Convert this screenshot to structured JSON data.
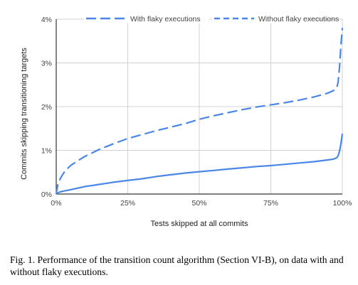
{
  "chart_data": {
    "type": "line",
    "title": "",
    "xlabel": "Tests skipped at all commits",
    "ylabel": "Commits skipping transitioning targets",
    "xlim": [
      0,
      100
    ],
    "ylim": [
      0,
      4
    ],
    "x_ticks": [
      {
        "value": 0,
        "label": "0%"
      },
      {
        "value": 25,
        "label": "25%"
      },
      {
        "value": 50,
        "label": "50%"
      },
      {
        "value": 75,
        "label": "75%"
      },
      {
        "value": 100,
        "label": "100%"
      }
    ],
    "y_ticks": [
      {
        "value": 0,
        "label": "0%"
      },
      {
        "value": 1,
        "label": "1%"
      },
      {
        "value": 2,
        "label": "2%"
      },
      {
        "value": 3,
        "label": "3%"
      },
      {
        "value": 4,
        "label": "4%"
      }
    ],
    "grid": "vertical and horizontal",
    "legend_position": "top",
    "series": [
      {
        "name": "With flaky executions",
        "color": "#4a86e8",
        "style": "long-dash",
        "x": [
          0,
          0.5,
          1,
          2,
          3,
          5,
          7.5,
          10,
          12.5,
          15,
          20,
          25,
          30,
          35,
          40,
          45,
          50,
          55,
          60,
          65,
          70,
          75,
          80,
          85,
          90,
          95,
          97,
          98,
          98.5,
          99,
          99.5,
          100
        ],
        "y": [
          0,
          0.2,
          0.3,
          0.42,
          0.52,
          0.65,
          0.76,
          0.86,
          0.94,
          1.02,
          1.15,
          1.27,
          1.36,
          1.45,
          1.53,
          1.61,
          1.71,
          1.79,
          1.86,
          1.93,
          1.99,
          2.04,
          2.09,
          2.15,
          2.22,
          2.31,
          2.37,
          2.43,
          2.55,
          2.9,
          3.4,
          3.8
        ]
      },
      {
        "name": "Without flaky executions",
        "color": "#4a86e8",
        "style": "solid",
        "x": [
          0,
          1,
          2,
          5,
          10,
          15,
          20,
          25,
          30,
          35,
          40,
          45,
          50,
          55,
          60,
          65,
          70,
          75,
          80,
          85,
          90,
          95,
          97,
          98,
          98.5,
          99,
          99.5,
          100
        ],
        "y": [
          0,
          0.04,
          0.06,
          0.1,
          0.17,
          0.22,
          0.27,
          0.31,
          0.35,
          0.4,
          0.44,
          0.48,
          0.51,
          0.54,
          0.57,
          0.6,
          0.63,
          0.65,
          0.68,
          0.71,
          0.74,
          0.78,
          0.8,
          0.83,
          0.87,
          0.98,
          1.15,
          1.38
        ]
      }
    ]
  },
  "caption": "Fig. 1.  Performance of the transition count algorithm (Section VI-B), on data with and without flaky executions."
}
